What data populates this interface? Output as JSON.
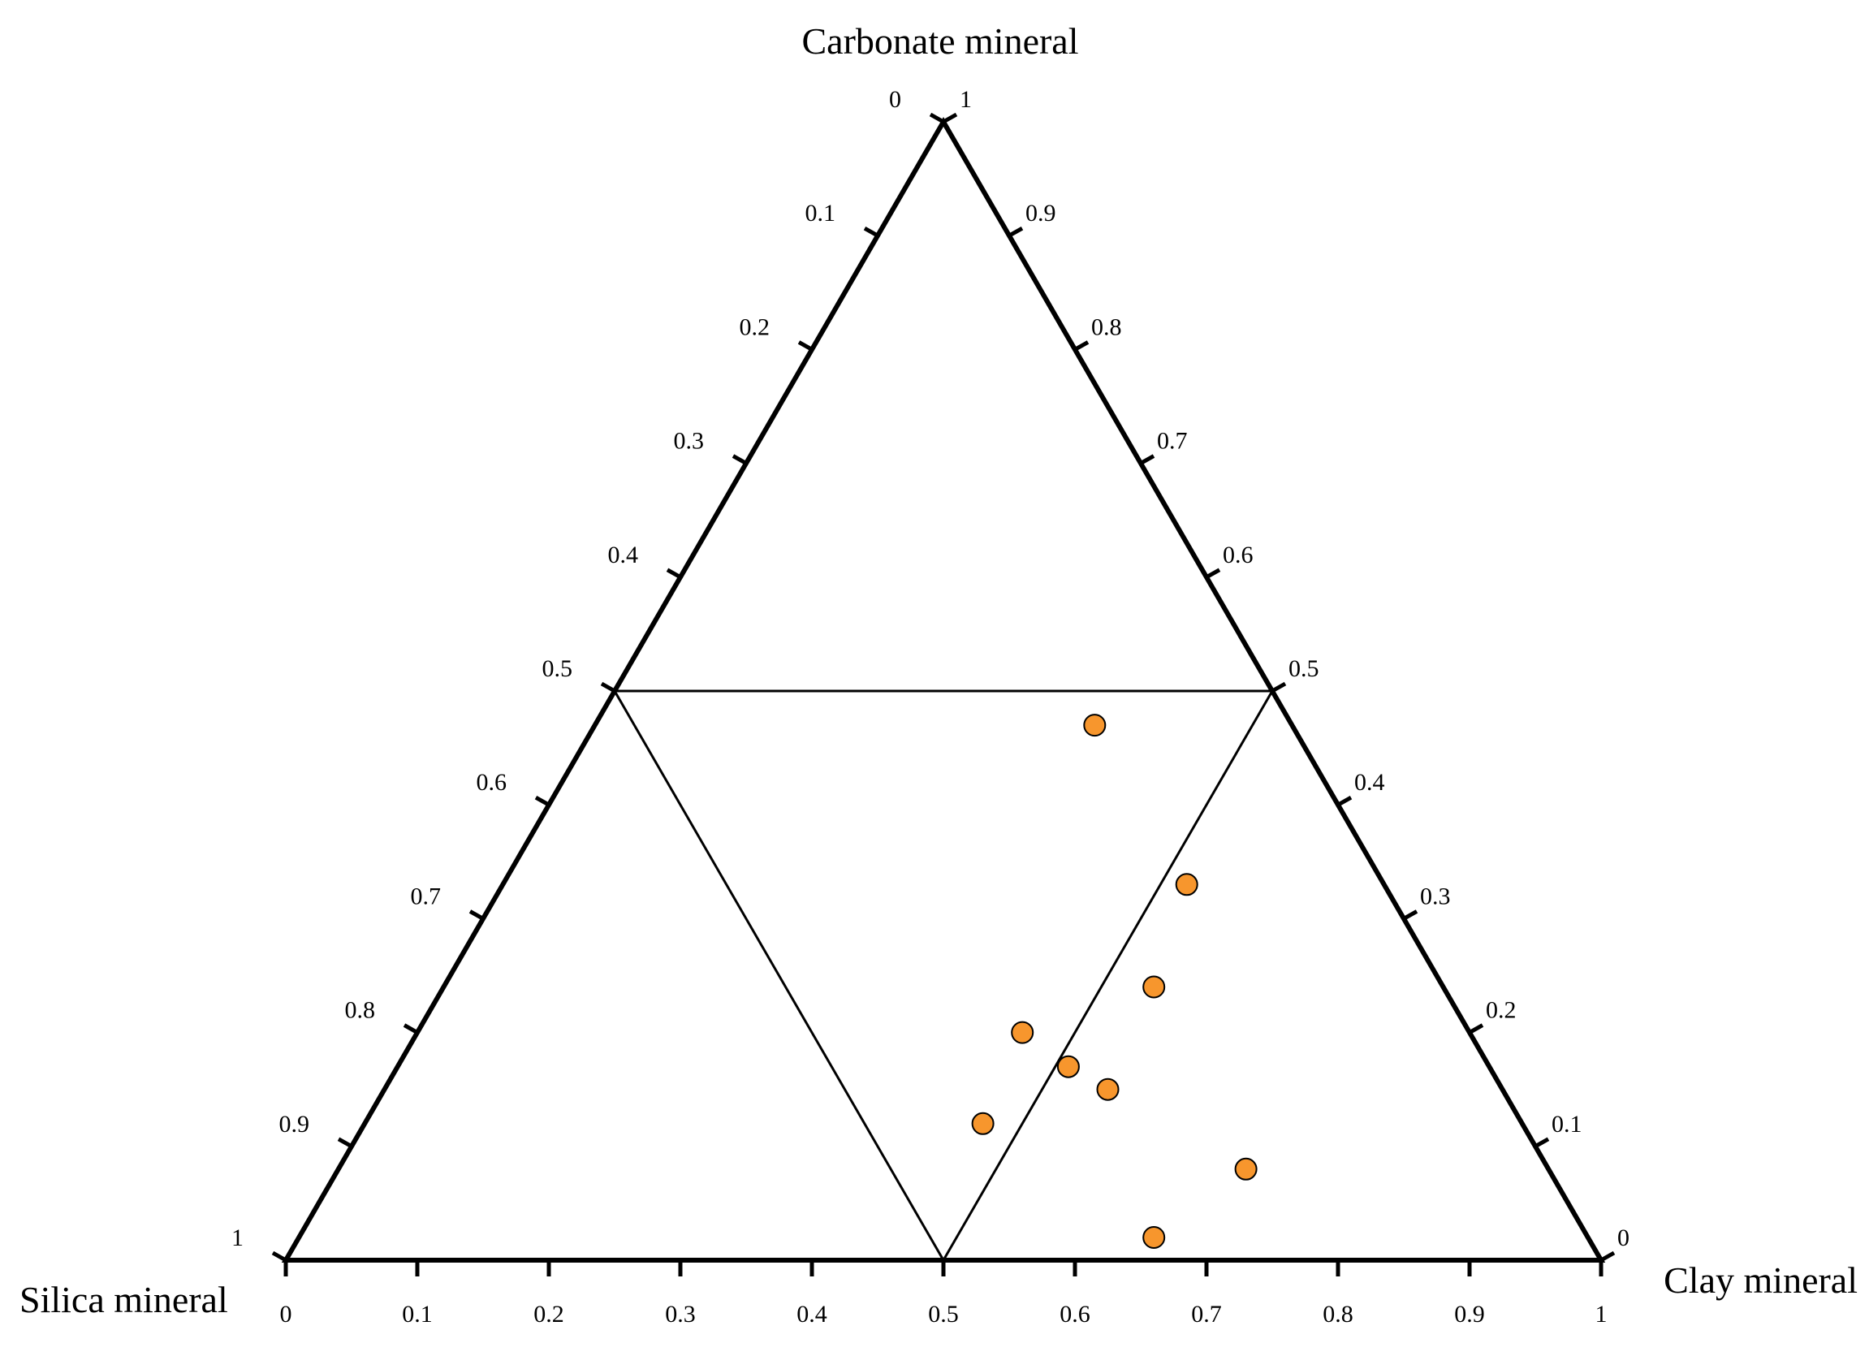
{
  "chart_data": {
    "type": "scatter",
    "subtype": "ternary",
    "vertices": {
      "top": "Carbonate mineral",
      "left": "Silica mineral",
      "right": "Clay mineral"
    },
    "ticks": [
      "0",
      "0.1",
      "0.2",
      "0.3",
      "0.4",
      "0.5",
      "0.6",
      "0.7",
      "0.8",
      "0.9",
      "1"
    ],
    "ternary_range": [
      0,
      1
    ],
    "inner_subdivision_at": 0.5,
    "marker_color": "#f7962d",
    "points": [
      {
        "carbonate": 0.47,
        "clay": 0.38
      },
      {
        "carbonate": 0.33,
        "clay": 0.52
      },
      {
        "carbonate": 0.24,
        "clay": 0.54
      },
      {
        "carbonate": 0.2,
        "clay": 0.46
      },
      {
        "carbonate": 0.17,
        "clay": 0.51
      },
      {
        "carbonate": 0.15,
        "clay": 0.55
      },
      {
        "carbonate": 0.12,
        "clay": 0.47
      },
      {
        "carbonate": 0.08,
        "clay": 0.69
      },
      {
        "carbonate": 0.02,
        "clay": 0.65
      }
    ]
  }
}
